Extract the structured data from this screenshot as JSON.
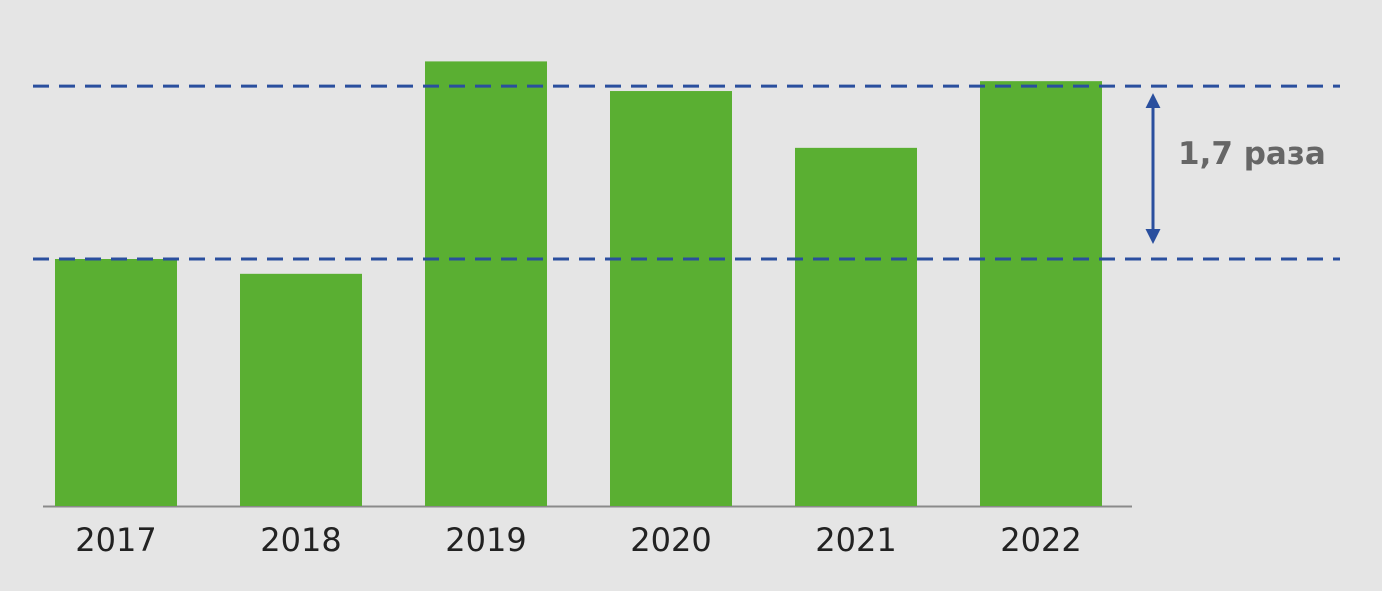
{
  "chart_data": {
    "type": "bar",
    "categories": [
      "2017",
      "2018",
      "2019",
      "2020",
      "2021",
      "2022"
    ],
    "values": [
      1.0,
      0.94,
      1.8,
      1.68,
      1.45,
      1.72
    ],
    "color": "#5aaf32",
    "ylim": [
      0,
      2
    ],
    "reference_lines": [
      1.0,
      1.7
    ],
    "reference_color": "#2a4f9e",
    "annotation": "1,7 раза"
  }
}
